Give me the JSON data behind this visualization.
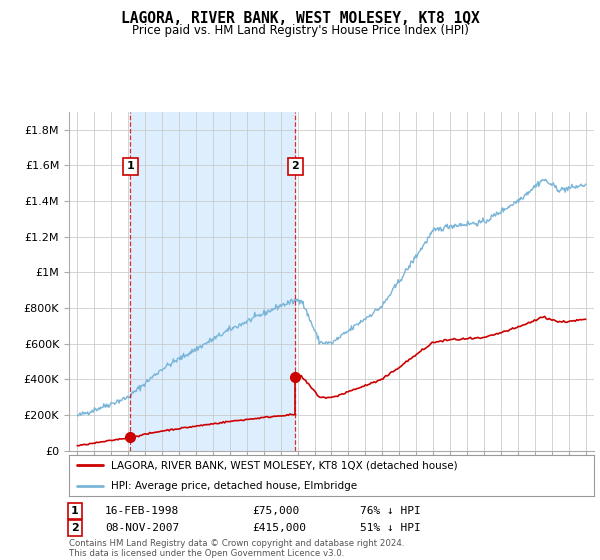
{
  "title": "LAGORA, RIVER BANK, WEST MOLESEY, KT8 1QX",
  "subtitle": "Price paid vs. HM Land Registry's House Price Index (HPI)",
  "legend_label_red": "LAGORA, RIVER BANK, WEST MOLESEY, KT8 1QX (detached house)",
  "legend_label_blue": "HPI: Average price, detached house, Elmbridge",
  "annotation1_date": "16-FEB-1998",
  "annotation1_price": "£75,000",
  "annotation1_hpi": "76% ↓ HPI",
  "annotation2_date": "08-NOV-2007",
  "annotation2_price": "£415,000",
  "annotation2_hpi": "51% ↓ HPI",
  "footer": "Contains HM Land Registry data © Crown copyright and database right 2024.\nThis data is licensed under the Open Government Licence v3.0.",
  "sale1_year": 1998.12,
  "sale1_price": 75000,
  "sale2_year": 2007.87,
  "sale2_price": 415000,
  "ylim_max": 1900000,
  "hpi_color": "#7ab5d8",
  "price_color": "#cc0000",
  "vline_color": "#cc0000",
  "shade_color": "#ddeeff",
  "background_color": "#ffffff",
  "grid_color": "#cccccc"
}
